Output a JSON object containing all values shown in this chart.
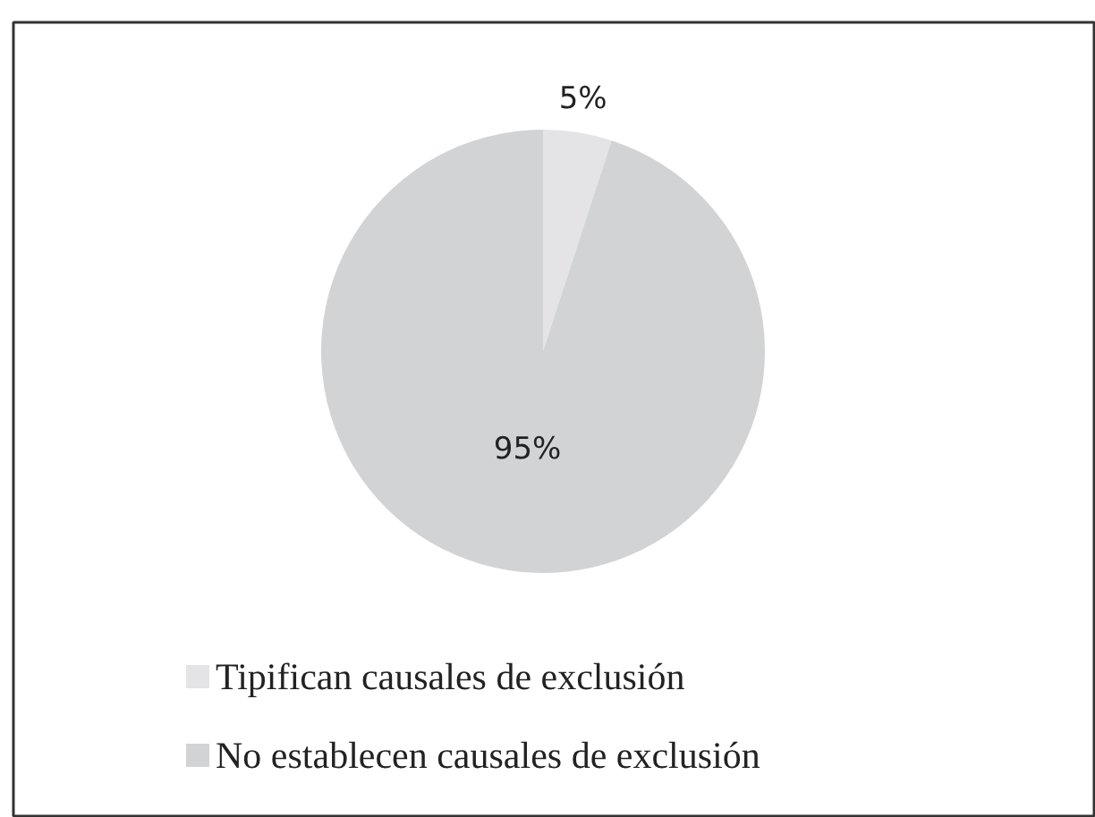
{
  "chart_data": {
    "type": "pie",
    "categories": [
      "Tipifican causales de exclusión",
      "No establecen causales de exclusión"
    ],
    "values": [
      5,
      95
    ],
    "colors": [
      "#e4e4e6",
      "#d2d3d5"
    ],
    "value_labels": [
      "5%",
      "95%"
    ],
    "legend": "bottom left"
  }
}
